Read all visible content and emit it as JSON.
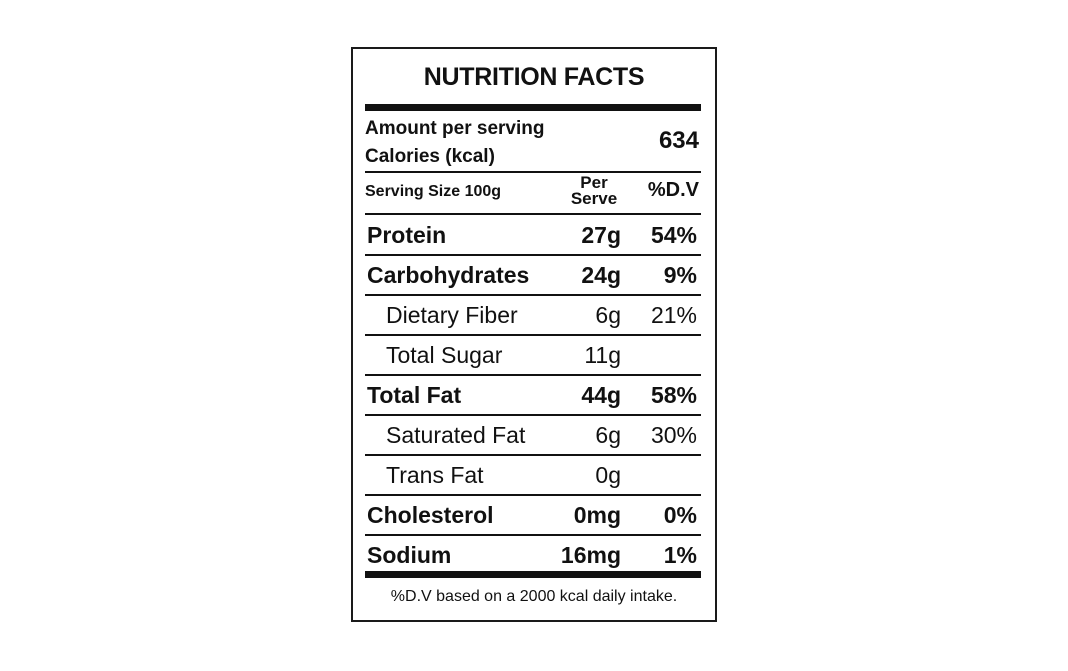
{
  "label": {
    "title": "NUTRITION FACTS",
    "amount_per_serving": "Amount per serving",
    "calories_label": "Calories (kcal)",
    "calories_value": "634",
    "serving_size": "Serving Size 100g",
    "per_serve_line1": "Per",
    "per_serve_line2": "Serve",
    "dv_header": "%D.V",
    "rows": [
      {
        "name": "Protein",
        "amount": "27g",
        "dv": "54%",
        "level": "main"
      },
      {
        "name": "Carbohydrates",
        "amount": "24g",
        "dv": "9%",
        "level": "main"
      },
      {
        "name": "Dietary Fiber",
        "amount": "6g",
        "dv": "21%",
        "level": "sub"
      },
      {
        "name": "Total Sugar",
        "amount": "11g",
        "dv": "",
        "level": "sub"
      },
      {
        "name": "Total Fat",
        "amount": "44g",
        "dv": "58%",
        "level": "main"
      },
      {
        "name": "Saturated Fat",
        "amount": "6g",
        "dv": "30%",
        "level": "sub"
      },
      {
        "name": "Trans Fat",
        "amount": "0g",
        "dv": "",
        "level": "sub"
      },
      {
        "name": "Cholesterol",
        "amount": "0mg",
        "dv": "0%",
        "level": "main"
      },
      {
        "name": "Sodium",
        "amount": "16mg",
        "dv": "1%",
        "level": "main"
      }
    ],
    "footnote": "%D.V based on a 2000 kcal daily intake."
  }
}
